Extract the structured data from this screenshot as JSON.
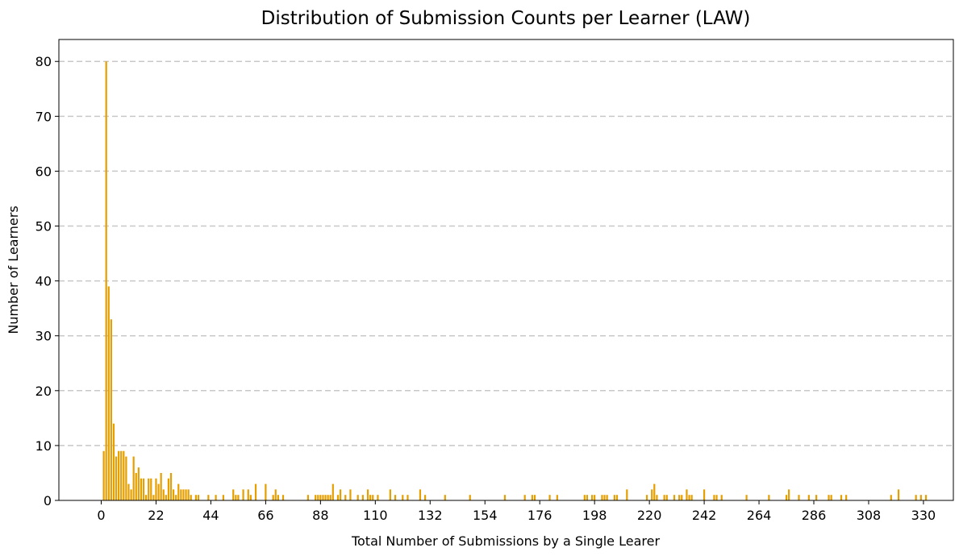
{
  "chart_data": {
    "type": "bar",
    "title": "Distribution of Submission Counts per Learner (LAW)",
    "xlabel": "Total Number of Submissions by a Single Learer",
    "ylabel": "Number of Learners",
    "xlim": [
      -17,
      342
    ],
    "ylim": [
      0,
      84
    ],
    "xticks": [
      0,
      22,
      44,
      66,
      88,
      110,
      132,
      154,
      176,
      198,
      220,
      242,
      264,
      286,
      308,
      330
    ],
    "yticks": [
      0,
      10,
      20,
      30,
      40,
      50,
      60,
      70,
      80
    ],
    "grid": "y-dashed",
    "bar_color": "#e69f00",
    "x": [
      1,
      2,
      3,
      4,
      5,
      6,
      7,
      8,
      9,
      10,
      11,
      12,
      13,
      14,
      15,
      16,
      17,
      18,
      19,
      20,
      21,
      22,
      23,
      24,
      25,
      26,
      27,
      28,
      29,
      30,
      31,
      32,
      33,
      34,
      35,
      36,
      38,
      39,
      43,
      46,
      49,
      53,
      54,
      55,
      57,
      59,
      60,
      62,
      66,
      69,
      70,
      71,
      73,
      83,
      86,
      87,
      88,
      89,
      90,
      91,
      92,
      93,
      95,
      96,
      98,
      100,
      103,
      105,
      107,
      108,
      109,
      111,
      116,
      118,
      121,
      123,
      128,
      130,
      138,
      148,
      162,
      170,
      173,
      174,
      180,
      183,
      194,
      195,
      197,
      198,
      201,
      202,
      203,
      206,
      207,
      211,
      219,
      221,
      222,
      223,
      226,
      227,
      230,
      232,
      233,
      235,
      236,
      237,
      242,
      246,
      247,
      249,
      259,
      268,
      275,
      276,
      280,
      284,
      287,
      292,
      293,
      297,
      299,
      317,
      320,
      327,
      329,
      331
    ],
    "values": [
      9,
      80,
      39,
      33,
      14,
      8,
      9,
      9,
      9,
      8,
      3,
      2,
      8,
      5,
      6,
      4,
      4,
      1,
      4,
      4,
      1,
      4,
      3,
      5,
      2,
      1,
      4,
      5,
      2,
      1,
      3,
      2,
      2,
      2,
      2,
      1,
      1,
      1,
      1,
      1,
      1,
      2,
      1,
      1,
      2,
      2,
      1,
      3,
      3,
      1,
      2,
      1,
      1,
      1,
      1,
      1,
      1,
      1,
      1,
      1,
      1,
      3,
      1,
      2,
      1,
      2,
      1,
      1,
      2,
      1,
      1,
      1,
      2,
      1,
      1,
      1,
      2,
      1,
      1,
      1,
      1,
      1,
      1,
      1,
      1,
      1,
      1,
      1,
      1,
      1,
      1,
      1,
      1,
      1,
      1,
      2,
      1,
      2,
      3,
      1,
      1,
      1,
      1,
      1,
      1,
      2,
      1,
      1,
      2,
      1,
      1,
      1,
      1,
      1,
      1,
      2,
      1,
      1,
      1,
      1,
      1,
      1,
      1,
      1,
      2,
      1,
      1,
      1
    ]
  }
}
